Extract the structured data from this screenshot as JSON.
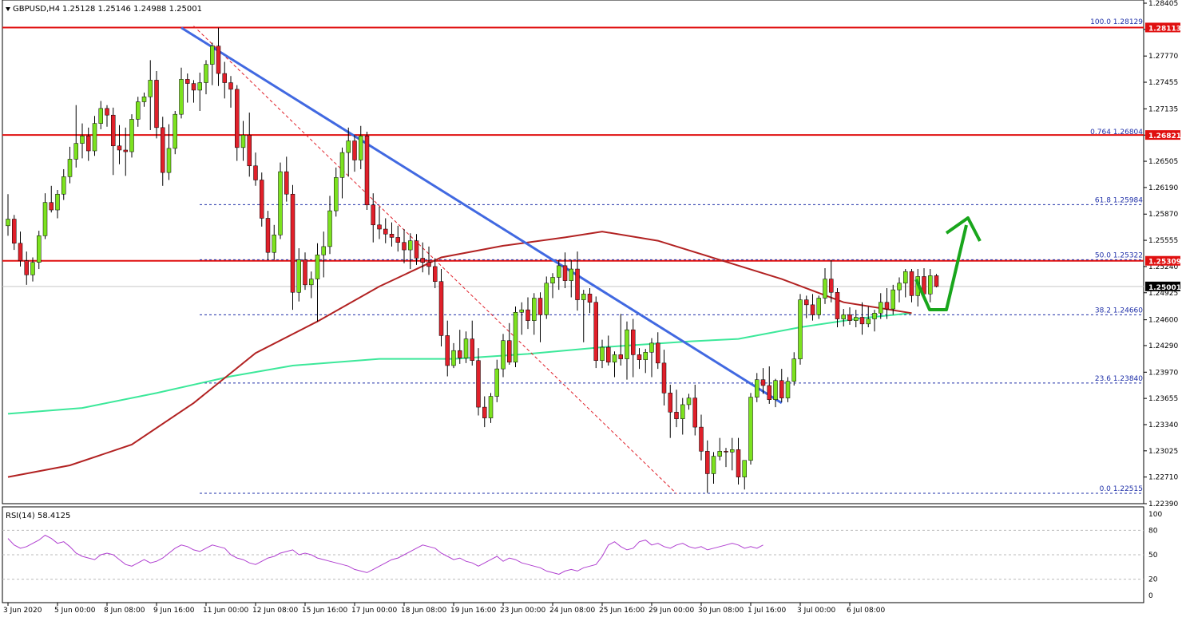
{
  "header": {
    "symbol": "GBPUSD,H4",
    "ohlc": "1.25128 1.25146 1.24988 1.25001"
  },
  "colors": {
    "background": "#ffffff",
    "bull_candle": "#7CE21F",
    "bear_candle": "#E0202A",
    "wick": "#000000",
    "resistance_line": "#E01010",
    "fib_line": "#1E2FA8",
    "trendline": "#4169E1",
    "ma_slow": "#B22222",
    "ma_long": "#3CE89A",
    "rsi_line": "#B040D0",
    "arrow": "#19A61C",
    "current_price_tag": "#000000"
  },
  "price_axis": {
    "labels": [
      "1.28405",
      "1.28090",
      "1.27770",
      "1.27455",
      "1.27135",
      "1.26820",
      "1.26505",
      "1.26190",
      "1.25870",
      "1.25555",
      "1.25240",
      "1.24925",
      "1.24600",
      "1.24290",
      "1.23970",
      "1.23655",
      "1.23340",
      "1.23025",
      "1.22710",
      "1.22390"
    ],
    "values": [
      1.28405,
      1.2809,
      1.2777,
      1.27455,
      1.27135,
      1.2682,
      1.26505,
      1.2619,
      1.2587,
      1.25555,
      1.2524,
      1.24925,
      1.246,
      1.2429,
      1.2397,
      1.23655,
      1.2334,
      1.23025,
      1.2271,
      1.2239
    ]
  },
  "price_tags": [
    {
      "text": "1.28113",
      "value": 1.28113,
      "color": "#E01010"
    },
    {
      "text": "1.26821",
      "value": 1.26821,
      "color": "#E01010"
    },
    {
      "text": "1.25309",
      "value": 1.25309,
      "color": "#E01010"
    },
    {
      "text": "1.25001",
      "value": 1.25001,
      "color": "#000000"
    }
  ],
  "horizontal_levels": [
    {
      "value": 1.28113,
      "style": "solid"
    },
    {
      "value": 1.26821,
      "style": "solid"
    },
    {
      "value": 1.25309,
      "style": "solid"
    }
  ],
  "fib_levels": [
    {
      "label": "100.0 1.28129",
      "value": 1.28129
    },
    {
      "label": "0.764 1.26804",
      "value": 1.26804
    },
    {
      "label": "61.8 1.25984",
      "value": 1.25984
    },
    {
      "label": "50.0 1.25322",
      "value": 1.25322
    },
    {
      "label": "38.2 1.24660",
      "value": 1.2466
    },
    {
      "label": "23.6 1.23840",
      "value": 1.2384
    },
    {
      "label": "0.0 1.22515",
      "value": 1.22515
    }
  ],
  "time_axis": {
    "labels": [
      "3 Jun 2020",
      "5 Jun 00:00",
      "8 Jun 08:00",
      "9 Jun 16:00",
      "11 Jun 00:00",
      "12 Jun 08:00",
      "15 Jun 16:00",
      "17 Jun 00:00",
      "18 Jun 08:00",
      "19 Jun 16:00",
      "23 Jun 00:00",
      "24 Jun 08:00",
      "25 Jun 16:00",
      "29 Jun 00:00",
      "30 Jun 08:00",
      "1 Jul 16:00",
      "3 Jul 00:00",
      "6 Jul 08:00"
    ],
    "bar_index": [
      0,
      8,
      16,
      24,
      32,
      40,
      48,
      56,
      64,
      72,
      80,
      88,
      96,
      104,
      112,
      120,
      128,
      136
    ]
  },
  "rsi": {
    "title": "RSI(14) 58.4125",
    "levels": [
      "100",
      "80",
      "50",
      "20",
      "0"
    ],
    "level_values": [
      100,
      80,
      50,
      20,
      0
    ]
  },
  "chart_data": {
    "type": "candlestick",
    "title": "GBPUSD,H4",
    "ylim": [
      1.2239,
      1.28405
    ],
    "candles": [
      [
        1.2573,
        1.2611,
        1.2561,
        1.2581
      ],
      [
        1.2581,
        1.2586,
        1.2544,
        1.2552
      ],
      [
        1.2552,
        1.2566,
        1.2524,
        1.2531
      ],
      [
        1.2531,
        1.2542,
        1.2502,
        1.2514
      ],
      [
        1.2514,
        1.2535,
        1.2506,
        1.2529
      ],
      [
        1.2529,
        1.2567,
        1.2521,
        1.2561
      ],
      [
        1.2561,
        1.2612,
        1.2557,
        1.2601
      ],
      [
        1.2601,
        1.2621,
        1.2589,
        1.2592
      ],
      [
        1.2592,
        1.2616,
        1.2582,
        1.2611
      ],
      [
        1.2611,
        1.2641,
        1.2604,
        1.2632
      ],
      [
        1.2632,
        1.2668,
        1.2624,
        1.2653
      ],
      [
        1.2653,
        1.2718,
        1.2643,
        1.2672
      ],
      [
        1.2672,
        1.2696,
        1.2654,
        1.2681
      ],
      [
        1.2681,
        1.2691,
        1.2651,
        1.2663
      ],
      [
        1.2663,
        1.2705,
        1.2657,
        1.2696
      ],
      [
        1.2696,
        1.2723,
        1.2689,
        1.2714
      ],
      [
        1.2714,
        1.2718,
        1.2692,
        1.2706
      ],
      [
        1.2706,
        1.2715,
        1.2634,
        1.2669
      ],
      [
        1.2669,
        1.2694,
        1.2647,
        1.2664
      ],
      [
        1.2664,
        1.2691,
        1.2633,
        1.2662
      ],
      [
        1.2662,
        1.2707,
        1.2655,
        1.2701
      ],
      [
        1.2701,
        1.2728,
        1.2692,
        1.2722
      ],
      [
        1.2722,
        1.2733,
        1.2716,
        1.2728
      ],
      [
        1.2728,
        1.2772,
        1.2688,
        1.2748
      ],
      [
        1.2748,
        1.2759,
        1.2678,
        1.2691
      ],
      [
        1.2691,
        1.2704,
        1.2621,
        1.2637
      ],
      [
        1.2637,
        1.2695,
        1.2628,
        1.2666
      ],
      [
        1.2666,
        1.2711,
        1.2659,
        1.2707
      ],
      [
        1.2707,
        1.2763,
        1.2702,
        1.2749
      ],
      [
        1.2749,
        1.2756,
        1.2721,
        1.2744
      ],
      [
        1.2744,
        1.2748,
        1.2721,
        1.2736
      ],
      [
        1.2736,
        1.2757,
        1.2711,
        1.2745
      ],
      [
        1.2745,
        1.2772,
        1.2731,
        1.2767
      ],
      [
        1.2767,
        1.2793,
        1.2742,
        1.2789
      ],
      [
        1.2789,
        1.2811,
        1.2741,
        1.2756
      ],
      [
        1.2756,
        1.277,
        1.2726,
        1.2745
      ],
      [
        1.2745,
        1.2753,
        1.2715,
        1.2737
      ],
      [
        1.2737,
        1.2742,
        1.2651,
        1.2667
      ],
      [
        1.2667,
        1.2699,
        1.2651,
        1.2682
      ],
      [
        1.2682,
        1.2709,
        1.2632,
        1.2645
      ],
      [
        1.2645,
        1.2661,
        1.2621,
        1.2628
      ],
      [
        1.2628,
        1.2637,
        1.2572,
        1.2582
      ],
      [
        1.2582,
        1.2591,
        1.2532,
        1.2541
      ],
      [
        1.2541,
        1.2574,
        1.2532,
        1.2562
      ],
      [
        1.2562,
        1.2649,
        1.2557,
        1.2638
      ],
      [
        1.2638,
        1.2656,
        1.2602,
        1.2611
      ],
      [
        1.2611,
        1.2622,
        1.2472,
        1.2493
      ],
      [
        1.2493,
        1.2546,
        1.2482,
        1.2532
      ],
      [
        1.2532,
        1.2541,
        1.2496,
        1.2502
      ],
      [
        1.2502,
        1.2518,
        1.2486,
        1.2509
      ],
      [
        1.2509,
        1.2552,
        1.2458,
        1.2538
      ],
      [
        1.2538,
        1.2566,
        1.2511,
        1.2548
      ],
      [
        1.2548,
        1.2609,
        1.2539,
        1.2591
      ],
      [
        1.2591,
        1.2643,
        1.2584,
        1.2631
      ],
      [
        1.2631,
        1.2667,
        1.2606,
        1.2661
      ],
      [
        1.2661,
        1.2691,
        1.2632,
        1.2675
      ],
      [
        1.2675,
        1.2682,
        1.2638,
        1.2652
      ],
      [
        1.2652,
        1.2693,
        1.2641,
        1.2681
      ],
      [
        1.2681,
        1.2686,
        1.2592,
        1.2598
      ],
      [
        1.2598,
        1.2612,
        1.2553,
        1.2574
      ],
      [
        1.2574,
        1.2596,
        1.2557,
        1.2569
      ],
      [
        1.2569,
        1.2582,
        1.2552,
        1.2563
      ],
      [
        1.2563,
        1.2577,
        1.2548,
        1.2559
      ],
      [
        1.2559,
        1.2573,
        1.2542,
        1.2553
      ],
      [
        1.2553,
        1.2569,
        1.2528,
        1.2544
      ],
      [
        1.2544,
        1.2564,
        1.2521,
        1.2555
      ],
      [
        1.2555,
        1.2563,
        1.2526,
        1.2534
      ],
      [
        1.2534,
        1.2553,
        1.2517,
        1.2529
      ],
      [
        1.2529,
        1.2548,
        1.2514,
        1.2524
      ],
      [
        1.2524,
        1.2534,
        1.2498,
        1.2506
      ],
      [
        1.2506,
        1.2521,
        1.2428,
        1.2441
      ],
      [
        1.2441,
        1.2459,
        1.2392,
        1.2405
      ],
      [
        1.2405,
        1.2432,
        1.2402,
        1.2423
      ],
      [
        1.2423,
        1.2448,
        1.2407,
        1.2414
      ],
      [
        1.2414,
        1.2446,
        1.2408,
        1.2437
      ],
      [
        1.2437,
        1.2459,
        1.2405,
        1.2411
      ],
      [
        1.2411,
        1.2426,
        1.2345,
        1.2355
      ],
      [
        1.2355,
        1.2368,
        1.2331,
        1.2342
      ],
      [
        1.2342,
        1.2372,
        1.2336,
        1.2368
      ],
      [
        1.2368,
        1.2412,
        1.2361,
        1.2401
      ],
      [
        1.2401,
        1.2443,
        1.2391,
        1.2435
      ],
      [
        1.2435,
        1.2456,
        1.2406,
        1.2409
      ],
      [
        1.2409,
        1.2476,
        1.2403,
        1.2469
      ],
      [
        1.2469,
        1.2481,
        1.2442,
        1.2472
      ],
      [
        1.2472,
        1.2487,
        1.2449,
        1.2459
      ],
      [
        1.2459,
        1.2492,
        1.2442,
        1.2486
      ],
      [
        1.2486,
        1.2493,
        1.2433,
        1.2466
      ],
      [
        1.2466,
        1.2512,
        1.2461,
        1.2504
      ],
      [
        1.2504,
        1.2516,
        1.2486,
        1.2511
      ],
      [
        1.2511,
        1.2532,
        1.2496,
        1.2525
      ],
      [
        1.2525,
        1.2541,
        1.2498,
        1.2507
      ],
      [
        1.2507,
        1.2532,
        1.2487,
        1.2521
      ],
      [
        1.2521,
        1.2542,
        1.2471,
        1.2484
      ],
      [
        1.2484,
        1.2496,
        1.2433,
        1.2491
      ],
      [
        1.2491,
        1.2498,
        1.2468,
        1.2481
      ],
      [
        1.2481,
        1.2488,
        1.2402,
        1.2411
      ],
      [
        1.2411,
        1.2436,
        1.2402,
        1.2427
      ],
      [
        1.2427,
        1.2441,
        1.2405,
        1.2409
      ],
      [
        1.2409,
        1.2422,
        1.2391,
        1.2418
      ],
      [
        1.2418,
        1.2467,
        1.2405,
        1.2413
      ],
      [
        1.2413,
        1.2458,
        1.2388,
        1.2448
      ],
      [
        1.2448,
        1.2461,
        1.2391,
        1.2418
      ],
      [
        1.2418,
        1.2426,
        1.2401,
        1.2412
      ],
      [
        1.2412,
        1.2425,
        1.2396,
        1.2421
      ],
      [
        1.2421,
        1.2438,
        1.2391,
        1.2432
      ],
      [
        1.2432,
        1.2445,
        1.2401,
        1.2408
      ],
      [
        1.2408,
        1.2424,
        1.2357,
        1.2372
      ],
      [
        1.2372,
        1.2382,
        1.2318,
        1.2349
      ],
      [
        1.2349,
        1.2376,
        1.2331,
        1.2341
      ],
      [
        1.2341,
        1.2366,
        1.2322,
        1.2358
      ],
      [
        1.2358,
        1.2371,
        1.2352,
        1.2366
      ],
      [
        1.2366,
        1.2382,
        1.2321,
        1.2331
      ],
      [
        1.2331,
        1.2346,
        1.2291,
        1.2302
      ],
      [
        1.2302,
        1.2315,
        1.2252,
        1.2275
      ],
      [
        1.2275,
        1.2301,
        1.2263,
        1.2296
      ],
      [
        1.2296,
        1.2318,
        1.2291,
        1.2302
      ],
      [
        1.2302,
        1.2306,
        1.2283,
        1.2301
      ],
      [
        1.2301,
        1.2318,
        1.2279,
        1.2304
      ],
      [
        1.2304,
        1.2318,
        1.2262,
        1.2271
      ],
      [
        1.2271,
        1.2286,
        1.2256,
        1.2291
      ],
      [
        1.2291,
        1.2372,
        1.2286,
        1.2367
      ],
      [
        1.2367,
        1.2396,
        1.2361,
        1.2388
      ],
      [
        1.2388,
        1.2402,
        1.2371,
        1.2381
      ],
      [
        1.2381,
        1.2404,
        1.2359,
        1.2364
      ],
      [
        1.2364,
        1.2389,
        1.2355,
        1.2387
      ],
      [
        1.2387,
        1.2401,
        1.2361,
        1.2366
      ],
      [
        1.2366,
        1.2391,
        1.2361,
        1.2386
      ],
      [
        1.2386,
        1.2421,
        1.2381,
        1.2413
      ],
      [
        1.2413,
        1.2491,
        1.2406,
        1.2484
      ],
      [
        1.2484,
        1.2489,
        1.2462,
        1.2478
      ],
      [
        1.2478,
        1.2491,
        1.2459,
        1.2466
      ],
      [
        1.2466,
        1.2489,
        1.2461,
        1.2486
      ],
      [
        1.2486,
        1.2522,
        1.2479,
        1.2509
      ],
      [
        1.2509,
        1.2532,
        1.2481,
        1.2493
      ],
      [
        1.2493,
        1.2498,
        1.2451,
        1.2461
      ],
      [
        1.2461,
        1.2473,
        1.2452,
        1.2466
      ],
      [
        1.2466,
        1.2475,
        1.2454,
        1.2459
      ],
      [
        1.2459,
        1.2472,
        1.2451,
        1.2463
      ],
      [
        1.2463,
        1.2481,
        1.2442,
        1.2455
      ],
      [
        1.2455,
        1.2476,
        1.2451,
        1.2461
      ],
      [
        1.2461,
        1.2472,
        1.2446,
        1.2468
      ],
      [
        1.2468,
        1.2492,
        1.2461,
        1.2481
      ],
      [
        1.2481,
        1.2498,
        1.2461,
        1.2473
      ],
      [
        1.2473,
        1.2502,
        1.2466,
        1.2496
      ],
      [
        1.2496,
        1.2511,
        1.2481,
        1.2504
      ],
      [
        1.2504,
        1.2521,
        1.2487,
        1.2518
      ],
      [
        1.2518,
        1.2521,
        1.2481,
        1.2489
      ],
      [
        1.2489,
        1.2521,
        1.2476,
        1.2512
      ],
      [
        1.2512,
        1.2522,
        1.2486,
        1.2491
      ],
      [
        1.2491,
        1.2521,
        1.2481,
        1.2513
      ],
      [
        1.2513,
        1.2515,
        1.2499,
        1.25
      ]
    ],
    "ma_100": {
      "name": "",
      "points": [
        [
          0,
          1.2271
        ],
        [
          10,
          1.2285
        ],
        [
          20,
          1.231
        ],
        [
          30,
          1.236
        ],
        [
          40,
          1.242
        ],
        [
          50,
          1.2458
        ],
        [
          60,
          1.25
        ],
        [
          70,
          1.2535
        ],
        [
          80,
          1.2549
        ],
        [
          90,
          1.2559
        ],
        [
          96,
          1.2566
        ],
        [
          105,
          1.2555
        ],
        [
          115,
          1.2532
        ],
        [
          125,
          1.2509
        ],
        [
          135,
          1.2481
        ],
        [
          146,
          1.2468
        ]
      ]
    },
    "ma_200": {
      "name": "",
      "points": [
        [
          0,
          1.2347
        ],
        [
          12,
          1.2354
        ],
        [
          24,
          1.2372
        ],
        [
          36,
          1.2392
        ],
        [
          46,
          1.2405
        ],
        [
          60,
          1.2413
        ],
        [
          72,
          1.2413
        ],
        [
          84,
          1.2419
        ],
        [
          96,
          1.2427
        ],
        [
          110,
          1.2434
        ],
        [
          118,
          1.2437
        ],
        [
          128,
          1.2451
        ],
        [
          138,
          1.2462
        ],
        [
          146,
          1.2468
        ]
      ]
    },
    "trendline": {
      "from": [
        28,
        1.2811
      ],
      "to": [
        125,
        1.236
      ]
    },
    "fib_diagonal": {
      "from": [
        30,
        1.2813
      ],
      "to": [
        108,
        1.2251
      ]
    },
    "rsi_values": [
      70,
      62,
      58,
      60,
      64,
      68,
      74,
      70,
      64,
      66,
      60,
      52,
      48,
      46,
      44,
      50,
      52,
      50,
      44,
      38,
      36,
      40,
      44,
      40,
      42,
      46,
      52,
      58,
      62,
      60,
      56,
      54,
      58,
      62,
      60,
      58,
      50,
      46,
      44,
      40,
      38,
      42,
      46,
      48,
      52,
      54,
      56,
      50,
      52,
      50,
      46,
      44,
      42,
      40,
      38,
      36,
      32,
      30,
      28,
      32,
      36,
      40,
      44,
      46,
      50,
      54,
      58,
      62,
      60,
      58,
      52,
      48,
      44,
      46,
      42,
      40,
      36,
      40,
      44,
      48,
      42,
      46,
      44,
      40,
      38,
      36,
      34,
      30,
      28,
      26,
      30,
      32,
      30,
      34,
      36,
      38,
      48,
      62,
      66,
      60,
      56,
      58,
      66,
      68,
      62,
      64,
      60,
      58,
      62,
      64,
      60,
      58,
      60,
      56,
      58,
      60,
      62,
      64,
      62,
      58,
      60,
      58,
      62
    ],
    "rsi_ylim": [
      0,
      100
    ]
  }
}
